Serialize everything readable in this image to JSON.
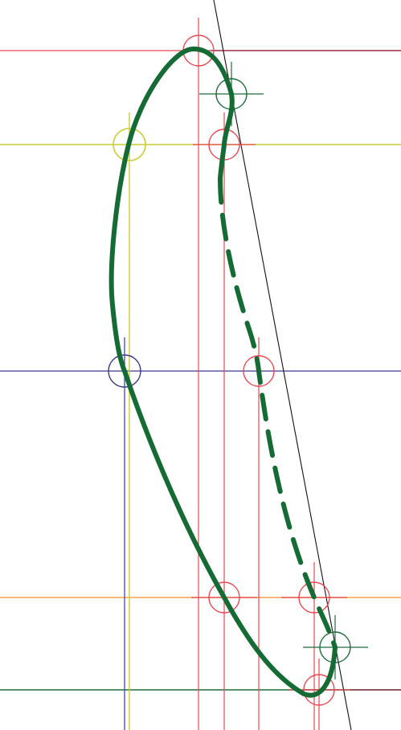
{
  "diagram": {
    "background": "#ffffff",
    "colors": {
      "red": "#e8474f",
      "dark_red": "#8a1f3c",
      "yellow": "#cccc33",
      "blue": "#3a3a8f",
      "orange": "#f5a04a",
      "dark_green": "#1f6b3a",
      "curve_green": "#156b34",
      "black": "#111111"
    },
    "labels": []
  }
}
